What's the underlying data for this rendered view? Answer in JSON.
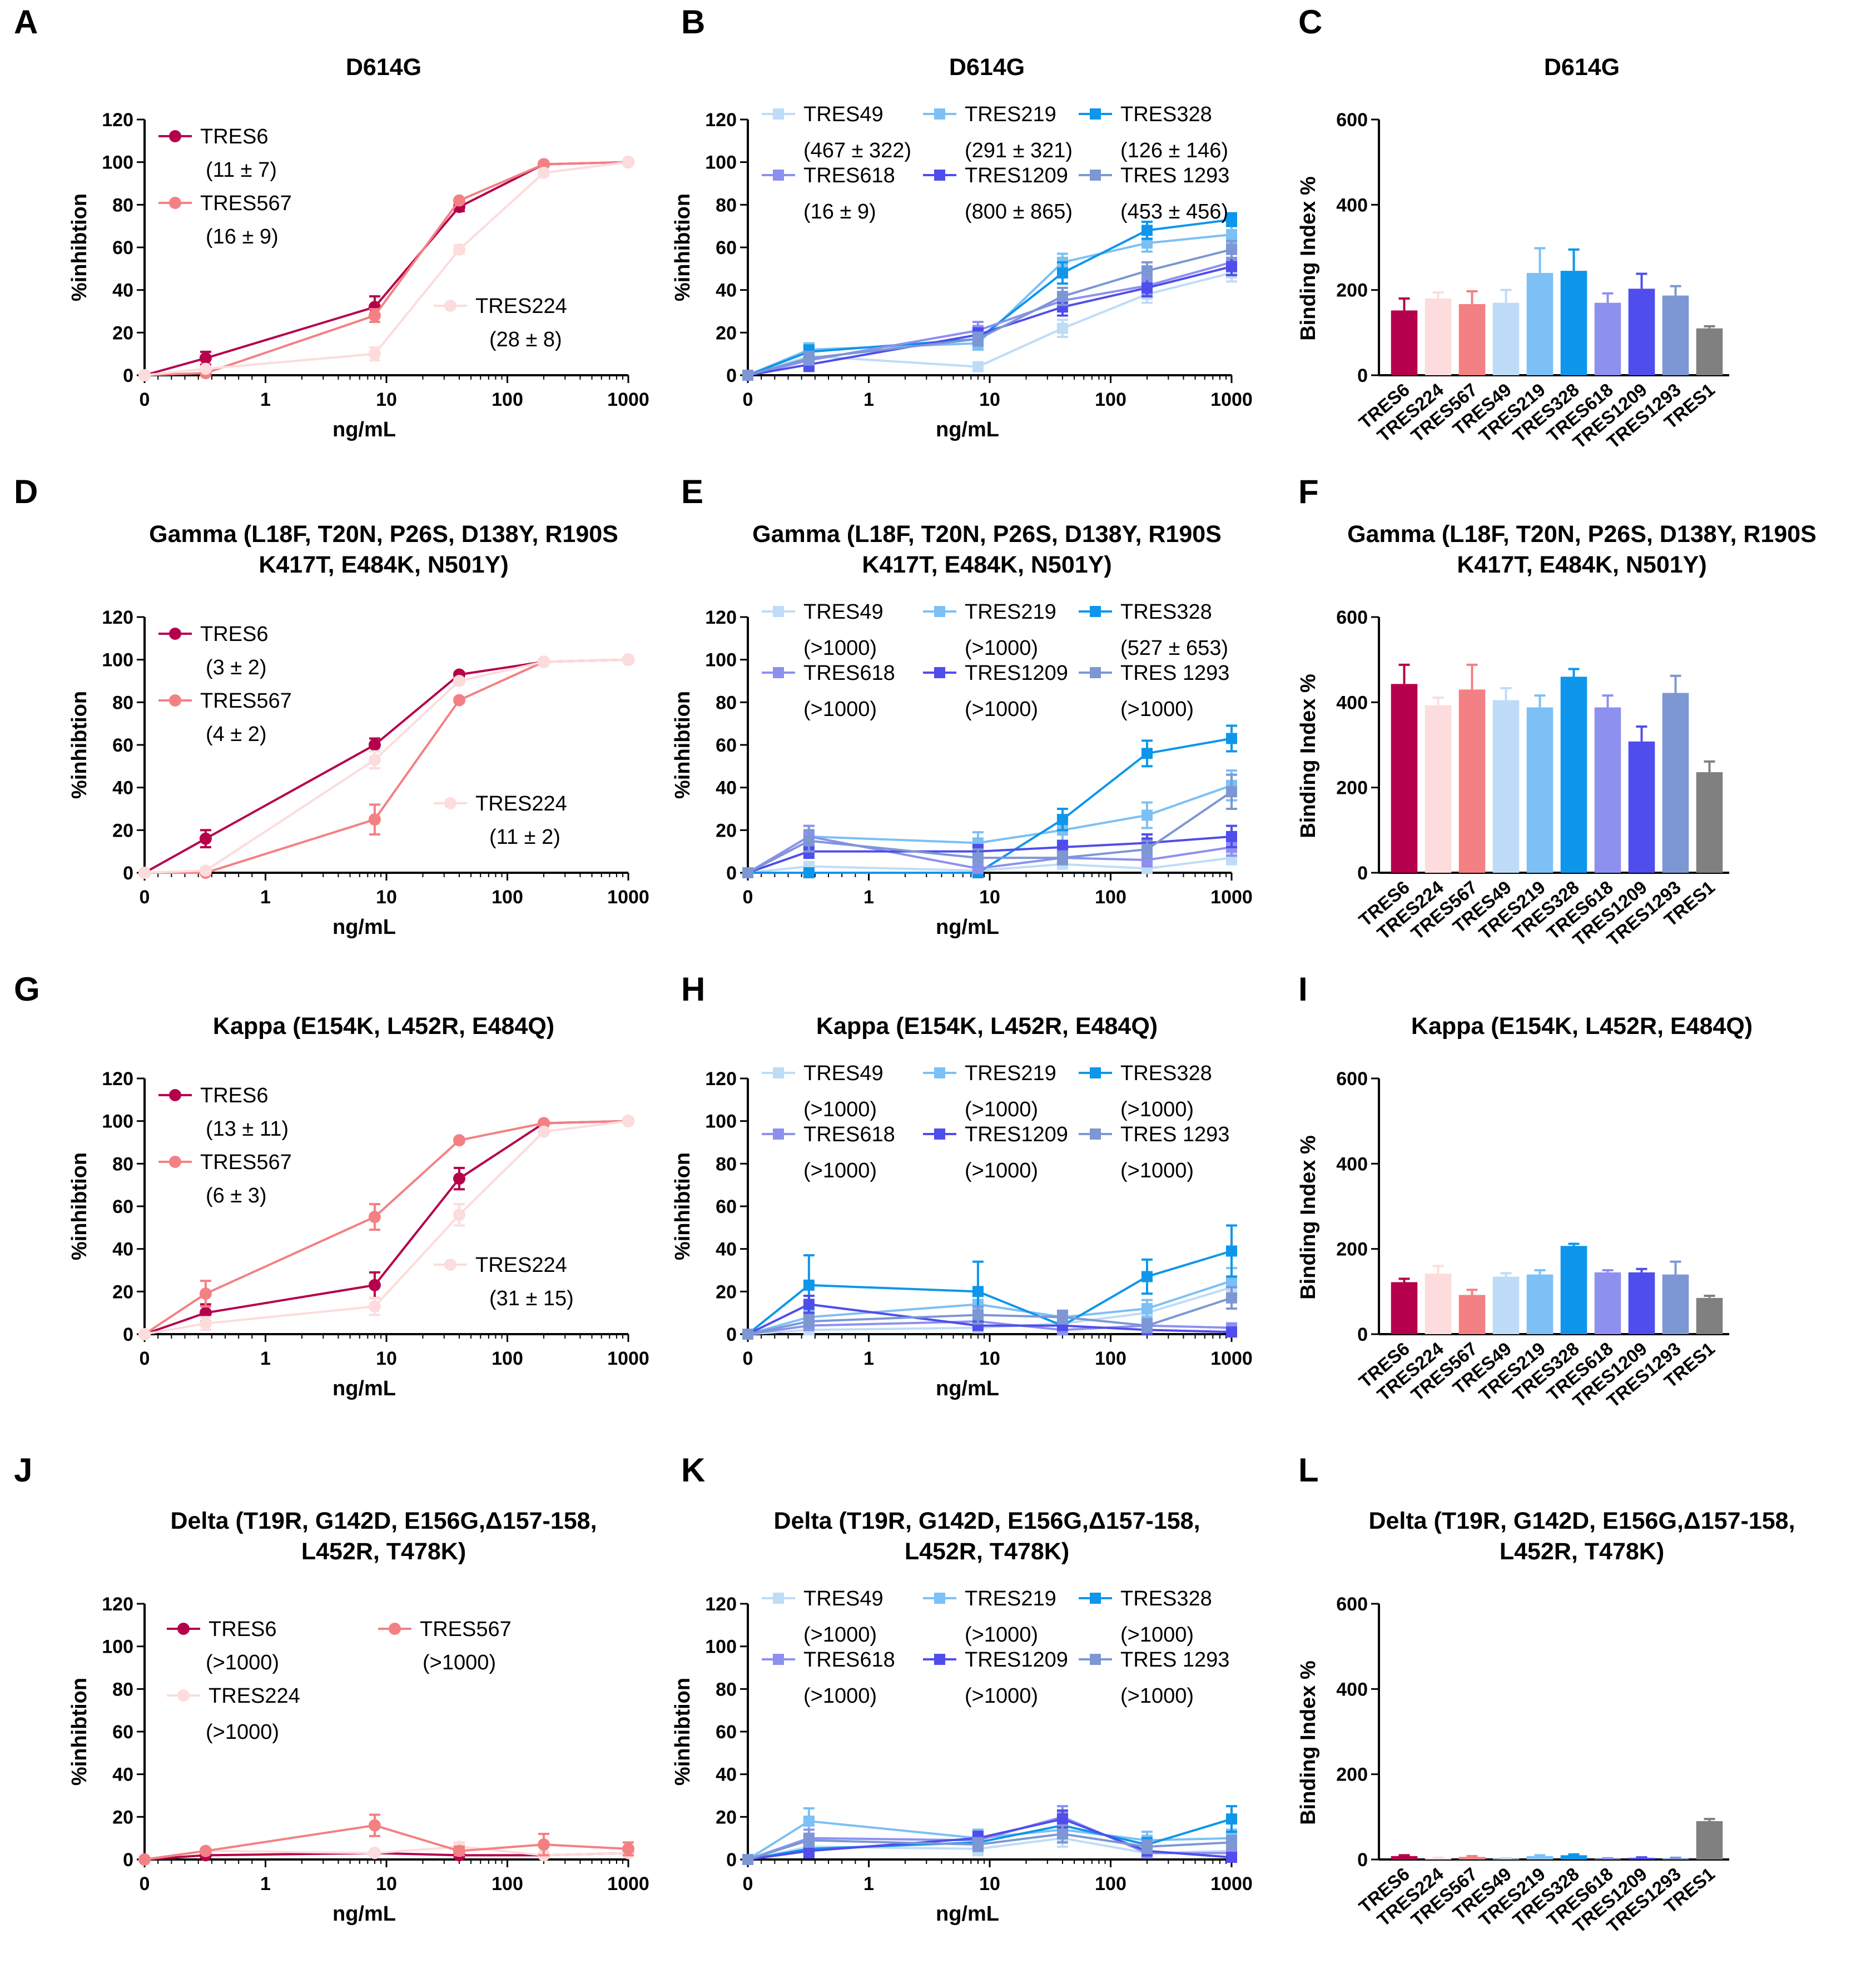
{
  "colors": {
    "TRES6": "#b5004b",
    "TRES224": "#fcdcdc",
    "TRES567": "#f38083",
    "TRES49": "#bedcf7",
    "TRES219": "#7cc0f5",
    "TRES328": "#0d96eb",
    "TRES618": "#8d90ef",
    "TRES1209": "#4f4dec",
    "TRES1293": "#7c97d4",
    "TRES1": "#808080"
  },
  "common": {
    "x_ticks": [
      "0",
      "1",
      "10",
      "100",
      "1000"
    ],
    "y_ticks": [
      "0",
      "20",
      "40",
      "60",
      "80",
      "100",
      "120"
    ],
    "bar_y_ticks": [
      "0",
      "200",
      "400",
      "600"
    ],
    "xlabel": "ng/mL",
    "ylabel_line": "%inhibtion",
    "ylabel_bar": "Binding Index %"
  },
  "chart_data": [
    {
      "id": "A",
      "type": "line",
      "title": [
        "D614G"
      ],
      "xlabel": "ng/mL",
      "ylabel": "%inhibtion",
      "ylim": [
        0,
        120
      ],
      "x": [
        0,
        0.32,
        8,
        40,
        200,
        1000
      ],
      "series": [
        {
          "name": "TRES6",
          "label": "(11 ± 7)",
          "values": [
            0,
            8,
            32,
            79,
            99,
            100
          ],
          "err": [
            0,
            3,
            5,
            2,
            1,
            1
          ]
        },
        {
          "name": "TRES567",
          "label": "(16 ± 9)",
          "values": [
            0,
            1,
            28,
            82,
            99,
            100
          ],
          "err": [
            0,
            1,
            3,
            1,
            1,
            1
          ]
        },
        {
          "name": "TRES224",
          "label": "(28 ± 8)",
          "values": [
            0,
            3,
            10,
            59,
            95,
            100
          ],
          "err": [
            0,
            1,
            3,
            2,
            1,
            1
          ]
        }
      ]
    },
    {
      "id": "B",
      "type": "line",
      "title": [
        "D614G"
      ],
      "xlabel": "ng/mL",
      "ylabel": "%inhibtion",
      "ylim": [
        0,
        120
      ],
      "x": [
        0,
        0.32,
        8,
        40,
        200,
        1000
      ],
      "series": [
        {
          "name": "TRES49",
          "label": "(467 ± 322)",
          "values": [
            0,
            9,
            4,
            22,
            38,
            48
          ],
          "err": [
            0,
            3,
            2,
            4,
            4,
            4
          ]
        },
        {
          "name": "TRES219",
          "label": "(291 ± 321)",
          "values": [
            0,
            12,
            15,
            53,
            62,
            66
          ],
          "err": [
            0,
            3,
            3,
            4,
            4,
            4
          ]
        },
        {
          "name": "TRES328",
          "label": "(126 ± 146)",
          "values": [
            0,
            11,
            17,
            48,
            68,
            73
          ],
          "err": [
            0,
            3,
            3,
            5,
            4,
            3
          ]
        },
        {
          "name": "TRES618",
          "label": "(16 ± 9)",
          "values": [
            0,
            7,
            21,
            35,
            42,
            53
          ],
          "err": [
            0,
            3,
            4,
            4,
            4,
            4
          ]
        },
        {
          "name": "TRES1209",
          "label": "(800 ± 865)",
          "values": [
            0,
            5,
            19,
            32,
            41,
            51
          ],
          "err": [
            0,
            3,
            3,
            4,
            4,
            4
          ]
        },
        {
          "name": "TRES 1293",
          "label": "(453 ± 456)",
          "values": [
            0,
            8,
            17,
            37,
            49,
            59
          ],
          "err": [
            0,
            3,
            3,
            4,
            4,
            4
          ]
        }
      ]
    },
    {
      "id": "C",
      "type": "bar",
      "title": [
        "D614G"
      ],
      "ylabel": "Binding Index %",
      "ylim": [
        0,
        600
      ],
      "categories": [
        "TRES6",
        "TRES224",
        "TRES567",
        "TRES49",
        "TRES219",
        "TRES328",
        "TRES618",
        "TRES1209",
        "TRES1293",
        "TRES1"
      ],
      "values": [
        152,
        180,
        167,
        170,
        240,
        245,
        170,
        203,
        187,
        110
      ],
      "err": [
        28,
        14,
        30,
        30,
        58,
        50,
        22,
        35,
        22,
        5
      ]
    },
    {
      "id": "D",
      "type": "line",
      "title": [
        "Gamma (L18F, T20N, P26S, D138Y, R190S",
        "K417T, E484K, N501Y)"
      ],
      "xlabel": "ng/mL",
      "ylabel": "%inhibtion",
      "ylim": [
        0,
        120
      ],
      "x": [
        0,
        0.32,
        8,
        40,
        200,
        1000
      ],
      "series": [
        {
          "name": "TRES6",
          "label": "(3 ± 2)",
          "values": [
            0,
            16,
            60,
            93,
            99,
            100
          ],
          "err": [
            0,
            4,
            3,
            1,
            1,
            1
          ]
        },
        {
          "name": "TRES567",
          "label": "(4 ± 2)",
          "values": [
            0,
            0,
            25,
            81,
            99,
            100
          ],
          "err": [
            0,
            1,
            7,
            1,
            1,
            1
          ]
        },
        {
          "name": "TRES224",
          "label": "(11 ± 2)",
          "values": [
            0,
            1,
            53,
            90,
            99,
            100
          ],
          "err": [
            0,
            1,
            4,
            1,
            1,
            1
          ]
        }
      ]
    },
    {
      "id": "E",
      "type": "line",
      "title": [
        "Gamma (L18F, T20N, P26S, D138Y, R190S",
        "K417T, E484K, N501Y)"
      ],
      "xlabel": "ng/mL",
      "ylabel": "%inhibtion",
      "ylim": [
        0,
        120
      ],
      "x": [
        0,
        0.32,
        8,
        40,
        200,
        1000
      ],
      "series": [
        {
          "name": "TRES49",
          "label": "(>1000)",
          "values": [
            0,
            3,
            1,
            4,
            2,
            7
          ],
          "err": [
            0,
            2,
            2,
            2,
            2,
            3
          ]
        },
        {
          "name": "TRES219",
          "label": "(>1000)",
          "values": [
            0,
            17,
            14,
            20,
            27,
            41
          ],
          "err": [
            0,
            5,
            5,
            5,
            6,
            7
          ]
        },
        {
          "name": "TRES328",
          "label": "(527 ± 653)",
          "values": [
            0,
            0,
            0,
            25,
            56,
            63
          ],
          "err": [
            0,
            1,
            1,
            5,
            6,
            6
          ]
        },
        {
          "name": "TRES618",
          "label": "(>1000)",
          "values": [
            0,
            17,
            2,
            7,
            6,
            12
          ],
          "err": [
            0,
            5,
            3,
            3,
            3,
            4
          ]
        },
        {
          "name": "TRES1209",
          "label": "(>1000)",
          "values": [
            0,
            10,
            10,
            12,
            14,
            17
          ],
          "err": [
            0,
            3,
            3,
            3,
            4,
            5
          ]
        },
        {
          "name": "TRES 1293",
          "label": "(>1000)",
          "values": [
            0,
            15,
            7,
            7,
            11,
            38
          ],
          "err": [
            0,
            5,
            4,
            3,
            4,
            8
          ]
        }
      ]
    },
    {
      "id": "F",
      "type": "bar",
      "title": [
        "Gamma (L18F, T20N, P26S, D138Y, R190S",
        "K417T, E484K, N501Y)"
      ],
      "ylabel": "Binding Index %",
      "ylim": [
        0,
        600
      ],
      "categories": [
        "TRES6",
        "TRES224",
        "TRES567",
        "TRES49",
        "TRES219",
        "TRES328",
        "TRES618",
        "TRES1209",
        "TRES1293",
        "TRES1"
      ],
      "values": [
        443,
        393,
        430,
        405,
        388,
        460,
        388,
        308,
        422,
        236
      ],
      "err": [
        45,
        18,
        58,
        28,
        28,
        18,
        28,
        35,
        40,
        25
      ]
    },
    {
      "id": "G",
      "type": "line",
      "title": [
        "Kappa (E154K, L452R, E484Q)"
      ],
      "xlabel": "ng/mL",
      "ylabel": "%inhibtion",
      "ylim": [
        0,
        120
      ],
      "x": [
        0,
        0.32,
        8,
        40,
        200,
        1000
      ],
      "series": [
        {
          "name": "TRES6",
          "label": "(13 ± 11)",
          "values": [
            0,
            10,
            23,
            73,
            99,
            100
          ],
          "err": [
            0,
            4,
            6,
            5,
            1,
            1
          ]
        },
        {
          "name": "TRES567",
          "label": "(6 ± 3)",
          "values": [
            0,
            19,
            55,
            91,
            99,
            100
          ],
          "err": [
            0,
            6,
            6,
            1,
            1,
            1
          ]
        },
        {
          "name": "TRES224",
          "label": "(31 ± 15)",
          "values": [
            0,
            5,
            13,
            56,
            95,
            100
          ],
          "err": [
            0,
            3,
            4,
            5,
            1,
            1
          ]
        }
      ]
    },
    {
      "id": "H",
      "type": "line",
      "title": [
        "Kappa (E154K, L452R, E484Q)"
      ],
      "xlabel": "ng/mL",
      "ylabel": "%inhibtion",
      "ylim": [
        0,
        120
      ],
      "x": [
        0,
        0.32,
        8,
        40,
        200,
        1000
      ],
      "series": [
        {
          "name": "TRES49",
          "label": "(>1000)",
          "values": [
            0,
            2,
            3,
            5,
            10,
            22
          ],
          "err": [
            0,
            2,
            2,
            3,
            4,
            5
          ]
        },
        {
          "name": "TRES219",
          "label": "(>1000)",
          "values": [
            0,
            8,
            14,
            8,
            12,
            25
          ],
          "err": [
            0,
            3,
            4,
            3,
            4,
            6
          ]
        },
        {
          "name": "TRES328",
          "label": "(>1000)",
          "values": [
            0,
            23,
            20,
            4,
            27,
            39
          ],
          "err": [
            0,
            14,
            14,
            4,
            8,
            12
          ]
        },
        {
          "name": "TRES618",
          "label": "(>1000)",
          "values": [
            0,
            4,
            6,
            2,
            4,
            3
          ],
          "err": [
            0,
            2,
            3,
            2,
            2,
            2
          ]
        },
        {
          "name": "TRES1209",
          "label": "(>1000)",
          "values": [
            0,
            14,
            4,
            4,
            2,
            1
          ],
          "err": [
            0,
            4,
            2,
            2,
            2,
            2
          ]
        },
        {
          "name": "TRES 1293",
          "label": "(>1000)",
          "values": [
            0,
            6,
            9,
            8,
            4,
            17
          ],
          "err": [
            0,
            3,
            4,
            3,
            3,
            5
          ]
        }
      ]
    },
    {
      "id": "I",
      "type": "bar",
      "title": [
        "Kappa (E154K, L452R, E484Q)"
      ],
      "ylabel": "Binding Index %",
      "ylim": [
        0,
        600
      ],
      "categories": [
        "TRES6",
        "TRES224",
        "TRES567",
        "TRES49",
        "TRES219",
        "TRES328",
        "TRES618",
        "TRES1209",
        "TRES1293",
        "TRES1"
      ],
      "values": [
        122,
        142,
        92,
        135,
        140,
        207,
        145,
        145,
        140,
        85
      ],
      "err": [
        8,
        18,
        12,
        8,
        10,
        5,
        5,
        8,
        30,
        5
      ]
    },
    {
      "id": "J",
      "type": "line",
      "title": [
        "Delta (T19R, G142D, E156G,Δ157-158,",
        "L452R, T478K)"
      ],
      "xlabel": "ng/mL",
      "ylabel": "%inhibtion",
      "ylim": [
        0,
        120
      ],
      "x": [
        0,
        0.32,
        8,
        40,
        200,
        1000
      ],
      "series": [
        {
          "name": "TRES6",
          "label": "(>1000)",
          "values": [
            0,
            2,
            3,
            2,
            2,
            3
          ],
          "err": [
            0,
            1,
            1,
            1,
            1,
            1
          ]
        },
        {
          "name": "TRES224",
          "label": "(>1000)",
          "values": [
            0,
            4,
            3,
            6,
            2,
            3
          ],
          "err": [
            0,
            1,
            1,
            2,
            1,
            1
          ]
        },
        {
          "name": "TRES567",
          "label": "(>1000)",
          "values": [
            0,
            4,
            16,
            4,
            7,
            5
          ],
          "err": [
            0,
            1,
            5,
            2,
            5,
            3
          ]
        }
      ]
    },
    {
      "id": "K",
      "type": "line",
      "title": [
        "Delta (T19R, G142D, E156G,Δ157-158,",
        "L452R, T478K)"
      ],
      "xlabel": "ng/mL",
      "ylabel": "%inhibtion",
      "ylim": [
        0,
        120
      ],
      "x": [
        0,
        0.32,
        8,
        40,
        200,
        1000
      ],
      "series": [
        {
          "name": "TRES49",
          "label": "(>1000)",
          "values": [
            0,
            6,
            5,
            10,
            3,
            4
          ],
          "err": [
            0,
            3,
            3,
            4,
            2,
            3
          ]
        },
        {
          "name": "TRES219",
          "label": "(>1000)",
          "values": [
            0,
            18,
            10,
            14,
            9,
            10
          ],
          "err": [
            0,
            6,
            4,
            4,
            4,
            4
          ]
        },
        {
          "name": "TRES328",
          "label": "(>1000)",
          "values": [
            0,
            5,
            8,
            16,
            7,
            19
          ],
          "err": [
            0,
            3,
            3,
            5,
            3,
            6
          ]
        },
        {
          "name": "TRES618",
          "label": "(>1000)",
          "values": [
            0,
            10,
            9,
            20,
            3,
            3
          ],
          "err": [
            0,
            4,
            4,
            5,
            2,
            2
          ]
        },
        {
          "name": "TRES1209",
          "label": "(>1000)",
          "values": [
            0,
            4,
            10,
            19,
            4,
            1
          ],
          "err": [
            0,
            3,
            3,
            4,
            2,
            2
          ]
        },
        {
          "name": "TRES 1293",
          "label": "(>1000)",
          "values": [
            0,
            9,
            7,
            12,
            6,
            8
          ],
          "err": [
            0,
            3,
            3,
            4,
            3,
            3
          ]
        }
      ]
    },
    {
      "id": "L",
      "type": "bar",
      "title": [
        "Delta (T19R, G142D, E156G,Δ157-158,",
        "L452R, T478K)"
      ],
      "ylabel": "Binding Index %",
      "ylim": [
        0,
        600
      ],
      "categories": [
        "TRES6",
        "TRES224",
        "TRES567",
        "TRES49",
        "TRES219",
        "TRES328",
        "TRES618",
        "TRES1209",
        "TRES1293",
        "TRES1"
      ],
      "values": [
        8,
        3,
        6,
        2,
        8,
        10,
        2,
        4,
        3,
        90
      ],
      "err": [
        2,
        1,
        2,
        1,
        2,
        2,
        1,
        1,
        1,
        5
      ]
    }
  ]
}
